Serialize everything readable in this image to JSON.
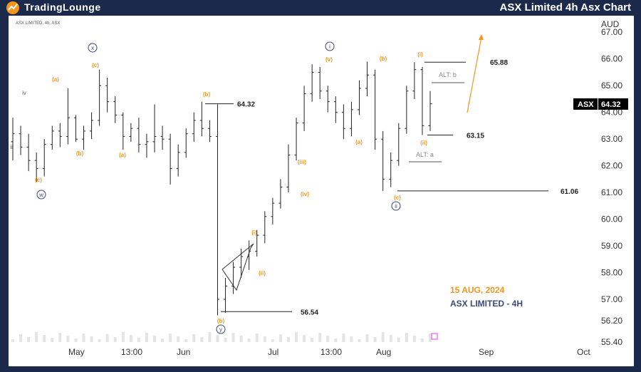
{
  "header": {
    "logo_text": "TradingLounge",
    "title": "ASX Limited 4h Asx Chart"
  },
  "chart_data": {
    "type": "candlestick",
    "symbol_caption": "ASX LIMITED, 4h, ASX",
    "currency": "AUD",
    "ticker": "ASX",
    "last_price": "64.32",
    "ylim": [
      55.4,
      67.3
    ],
    "y_ticks": [
      "67.00",
      "66.00",
      "65.00",
      "64.00",
      "63.00",
      "62.00",
      "61.00",
      "60.00",
      "59.00",
      "58.00",
      "57.00",
      "56.20",
      "55.40"
    ],
    "x_ticks": [
      "May",
      "13:00",
      "Jun",
      "Jul",
      "13:00",
      "Aug",
      "Sep",
      "Oct"
    ],
    "date_stamp": "15 AUG, 2024",
    "chart_subtitle": "ASX LIMITED - 4H",
    "price_levels": [
      {
        "label": "64.32",
        "value": 64.32
      },
      {
        "label": "65.88",
        "value": 65.88
      },
      {
        "label": "63.15",
        "value": 63.15
      },
      {
        "label": "61.06",
        "value": 61.06
      },
      {
        "label": "56.54",
        "value": 56.54
      }
    ],
    "alt_labels": [
      "ALT: b",
      "ALT: a"
    ],
    "wave_labels": [
      "(a)",
      "(b)",
      "(c)",
      "(a)",
      "(b)",
      "(c)",
      "(a)",
      "(b)",
      "(c)",
      "(i)",
      "(ii)",
      "(iii)",
      "(iv)",
      "(v)",
      "(i)",
      "(ii)",
      "(b)",
      "iv",
      "ii",
      "x",
      "w",
      "y",
      "i",
      "ii"
    ],
    "colors": {
      "orange": "#f7941d",
      "navy": "#3b4a7a",
      "candle": "#222222",
      "level": "#222222"
    },
    "candles": [
      [
        62.9,
        63.8,
        62.2,
        63.2
      ],
      [
        63.2,
        63.5,
        62.4,
        62.7
      ],
      [
        62.7,
        63.2,
        61.8,
        62.2
      ],
      [
        62.2,
        62.5,
        61.4,
        61.9
      ],
      [
        61.9,
        63.0,
        61.6,
        62.8
      ],
      [
        62.8,
        63.5,
        62.6,
        63.3
      ],
      [
        63.3,
        63.6,
        62.7,
        63.1
      ],
      [
        63.1,
        64.9,
        62.8,
        63.8
      ],
      [
        63.8,
        63.9,
        62.9,
        63.0
      ],
      [
        63.0,
        63.5,
        62.6,
        63.3
      ],
      [
        63.3,
        64.0,
        63.0,
        63.7
      ],
      [
        63.7,
        65.6,
        63.5,
        65.0
      ],
      [
        65.0,
        65.3,
        64.0,
        64.4
      ],
      [
        64.4,
        64.6,
        63.6,
        63.9
      ],
      [
        63.9,
        64.0,
        62.6,
        63.1
      ],
      [
        63.1,
        63.6,
        62.9,
        63.4
      ],
      [
        63.4,
        63.8,
        62.5,
        62.8
      ],
      [
        62.8,
        63.2,
        62.3,
        62.9
      ],
      [
        62.9,
        64.3,
        62.5,
        63.1
      ],
      [
        63.1,
        63.5,
        62.6,
        63.0
      ],
      [
        63.0,
        63.2,
        61.3,
        61.9
      ],
      [
        61.9,
        62.8,
        61.6,
        62.5
      ],
      [
        62.5,
        63.4,
        62.3,
        63.2
      ],
      [
        63.2,
        64.0,
        62.9,
        63.7
      ],
      [
        63.7,
        64.4,
        63.1,
        63.4
      ],
      [
        63.4,
        63.7,
        62.9,
        63.1
      ],
      [
        63.1,
        64.3,
        56.4,
        57.0
      ],
      [
        57.0,
        57.8,
        56.5,
        57.5
      ],
      [
        57.5,
        58.4,
        57.2,
        58.2
      ],
      [
        58.2,
        58.9,
        57.8,
        58.6
      ],
      [
        58.6,
        59.2,
        58.1,
        58.8
      ],
      [
        58.8,
        59.6,
        58.6,
        59.4
      ],
      [
        59.4,
        60.3,
        59.1,
        60.1
      ],
      [
        60.1,
        60.8,
        59.8,
        60.6
      ],
      [
        60.6,
        61.5,
        60.4,
        61.2
      ],
      [
        61.2,
        62.8,
        61.0,
        62.4
      ],
      [
        62.4,
        63.8,
        62.2,
        63.6
      ],
      [
        63.6,
        65.0,
        63.3,
        64.7
      ],
      [
        64.7,
        65.8,
        64.4,
        65.5
      ],
      [
        65.5,
        65.7,
        64.5,
        64.8
      ],
      [
        64.8,
        65.0,
        64.0,
        64.4
      ],
      [
        64.4,
        64.6,
        63.6,
        64.0
      ],
      [
        64.0,
        64.3,
        63.0,
        63.4
      ],
      [
        63.4,
        64.4,
        63.1,
        64.1
      ],
      [
        64.1,
        65.2,
        63.9,
        64.9
      ],
      [
        64.9,
        65.9,
        64.6,
        65.4
      ],
      [
        65.4,
        65.6,
        62.6,
        63.0
      ],
      [
        63.0,
        63.3,
        61.06,
        61.5
      ],
      [
        61.5,
        62.5,
        61.2,
        62.2
      ],
      [
        62.2,
        63.6,
        62.0,
        63.4
      ],
      [
        63.4,
        65.0,
        63.2,
        64.8
      ],
      [
        64.8,
        65.88,
        64.5,
        65.6
      ],
      [
        65.6,
        65.7,
        63.15,
        63.5
      ],
      [
        63.5,
        64.8,
        63.3,
        64.32
      ]
    ]
  }
}
